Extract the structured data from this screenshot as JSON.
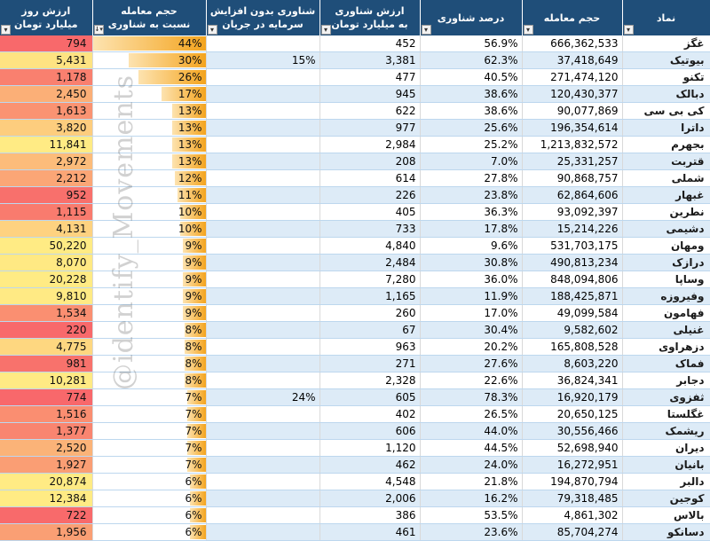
{
  "headers": {
    "namad": "نماد",
    "hajm": "حجم معامله",
    "darsad": "درصد شناوری",
    "arzesh_shenavari_l1": "ارزش شناوری",
    "arzesh_shenavari_l2": "به میلیارد تومان",
    "bedoon_l1": "شناوری بدون افزایش",
    "bedoon_l2": "سرمایه در جریان",
    "nesbat_l1": "حجم معامله",
    "nesbat_l2": "نسبت به شناوری",
    "arzesh_rooz_l1": "ارزش روز",
    "arzesh_rooz_l2": "میلیارد تومان"
  },
  "watermark": "@identify_Movements",
  "rows": [
    {
      "name": "غگز",
      "volume": "666,362,533",
      "float_pct": "56.9%",
      "float_value": "452",
      "no_increase": "",
      "ratio": "44%",
      "ratio_val": 44,
      "market_value": "794",
      "heat": "#f8696b"
    },
    {
      "name": "بیوتیک",
      "volume": "37,418,649",
      "float_pct": "62.3%",
      "float_value": "3,381",
      "no_increase": "15%",
      "ratio": "30%",
      "ratio_val": 30,
      "market_value": "5,431",
      "heat": "#fee382"
    },
    {
      "name": "تکنو",
      "volume": "271,474,120",
      "float_pct": "40.5%",
      "float_value": "477",
      "no_increase": "",
      "ratio": "26%",
      "ratio_val": 26,
      "market_value": "1,178",
      "heat": "#f9806f"
    },
    {
      "name": "دبالک",
      "volume": "120,430,377",
      "float_pct": "38.6%",
      "float_value": "945",
      "no_increase": "",
      "ratio": "17%",
      "ratio_val": 17,
      "market_value": "2,450",
      "heat": "#fbaf77"
    },
    {
      "name": "کی بی سی",
      "volume": "90,077,869",
      "float_pct": "38.6%",
      "float_value": "622",
      "no_increase": "",
      "ratio": "13%",
      "ratio_val": 13,
      "market_value": "1,613",
      "heat": "#fa9372"
    },
    {
      "name": "داترا",
      "volume": "196,354,614",
      "float_pct": "25.6%",
      "float_value": "977",
      "no_increase": "",
      "ratio": "13%",
      "ratio_val": 13,
      "market_value": "3,820",
      "heat": "#fdcd7e"
    },
    {
      "name": "بجهرم",
      "volume": "1,213,832,572",
      "float_pct": "25.2%",
      "float_value": "2,984",
      "no_increase": "",
      "ratio": "13%",
      "ratio_val": 13,
      "market_value": "11,841",
      "heat": "#ffeb84"
    },
    {
      "name": "قتربت",
      "volume": "25,331,257",
      "float_pct": "7.0%",
      "float_value": "208",
      "no_increase": "",
      "ratio": "13%",
      "ratio_val": 13,
      "market_value": "2,972",
      "heat": "#fcbc7a"
    },
    {
      "name": "شملی",
      "volume": "90,868,757",
      "float_pct": "27.8%",
      "float_value": "614",
      "no_increase": "",
      "ratio": "12%",
      "ratio_val": 12,
      "market_value": "2,212",
      "heat": "#fba676"
    },
    {
      "name": "غبهار",
      "volume": "62,864,606",
      "float_pct": "23.8%",
      "float_value": "226",
      "no_increase": "",
      "ratio": "11%",
      "ratio_val": 11,
      "market_value": "952",
      "heat": "#f8706c"
    },
    {
      "name": "نطرین",
      "volume": "93,092,397",
      "float_pct": "36.3%",
      "float_value": "405",
      "no_increase": "",
      "ratio": "10%",
      "ratio_val": 10,
      "market_value": "1,115",
      "heat": "#f97b6e"
    },
    {
      "name": "دشیمی",
      "volume": "15,214,226",
      "float_pct": "17.8%",
      "float_value": "733",
      "no_increase": "",
      "ratio": "10%",
      "ratio_val": 10,
      "market_value": "4,131",
      "heat": "#fed280"
    },
    {
      "name": "ومهان",
      "volume": "531,703,175",
      "float_pct": "9.6%",
      "float_value": "4,840",
      "no_increase": "",
      "ratio": "9%",
      "ratio_val": 9,
      "market_value": "50,220",
      "heat": "#ffeb84"
    },
    {
      "name": "درازک",
      "volume": "490,813,234",
      "float_pct": "30.8%",
      "float_value": "2,484",
      "no_increase": "",
      "ratio": "9%",
      "ratio_val": 9,
      "market_value": "8,070",
      "heat": "#ffe983"
    },
    {
      "name": "وساپا",
      "volume": "848,094,806",
      "float_pct": "36.0%",
      "float_value": "7,280",
      "no_increase": "",
      "ratio": "9%",
      "ratio_val": 9,
      "market_value": "20,228",
      "heat": "#ffeb84"
    },
    {
      "name": "وفیروزه",
      "volume": "188,425,871",
      "float_pct": "11.9%",
      "float_value": "1,165",
      "no_increase": "",
      "ratio": "9%",
      "ratio_val": 9,
      "market_value": "9,810",
      "heat": "#ffea84"
    },
    {
      "name": "فهامون",
      "volume": "49,099,584",
      "float_pct": "17.0%",
      "float_value": "260",
      "no_increase": "",
      "ratio": "9%",
      "ratio_val": 9,
      "market_value": "1,534",
      "heat": "#fa8f71"
    },
    {
      "name": "غنیلی",
      "volume": "9,582,602",
      "float_pct": "30.4%",
      "float_value": "67",
      "no_increase": "",
      "ratio": "8%",
      "ratio_val": 8,
      "market_value": "220",
      "heat": "#f8696b"
    },
    {
      "name": "دزهراوی",
      "volume": "165,808,528",
      "float_pct": "20.2%",
      "float_value": "963",
      "no_increase": "",
      "ratio": "8%",
      "ratio_val": 8,
      "market_value": "4,775",
      "heat": "#fed780"
    },
    {
      "name": "فماک",
      "volume": "8,603,220",
      "float_pct": "27.6%",
      "float_value": "271",
      "no_increase": "",
      "ratio": "8%",
      "ratio_val": 8,
      "market_value": "981",
      "heat": "#f8726c"
    },
    {
      "name": "دجابر",
      "volume": "36,824,341",
      "float_pct": "22.6%",
      "float_value": "2,328",
      "no_increase": "",
      "ratio": "8%",
      "ratio_val": 8,
      "market_value": "10,281",
      "heat": "#ffea84"
    },
    {
      "name": "ثفزوی",
      "volume": "16,920,179",
      "float_pct": "78.3%",
      "float_value": "605",
      "no_increase": "24%",
      "ratio": "7%",
      "ratio_val": 7,
      "market_value": "774",
      "heat": "#f8686b"
    },
    {
      "name": "غگلستا",
      "volume": "20,650,125",
      "float_pct": "26.5%",
      "float_value": "402",
      "no_increase": "",
      "ratio": "7%",
      "ratio_val": 7,
      "market_value": "1,516",
      "heat": "#fa8e71"
    },
    {
      "name": "ریشمک",
      "volume": "30,556,466",
      "float_pct": "44.0%",
      "float_value": "606",
      "no_increase": "",
      "ratio": "7%",
      "ratio_val": 7,
      "market_value": "1,377",
      "heat": "#f98570"
    },
    {
      "name": "دیران",
      "volume": "52,698,940",
      "float_pct": "44.5%",
      "float_value": "1,120",
      "no_increase": "",
      "ratio": "7%",
      "ratio_val": 7,
      "market_value": "2,520",
      "heat": "#fbb378"
    },
    {
      "name": "بانیان",
      "volume": "16,272,951",
      "float_pct": "24.0%",
      "float_value": "462",
      "no_increase": "",
      "ratio": "7%",
      "ratio_val": 7,
      "market_value": "1,927",
      "heat": "#fa9e74"
    },
    {
      "name": "دالبر",
      "volume": "194,870,794",
      "float_pct": "21.8%",
      "float_value": "4,548",
      "no_increase": "",
      "ratio": "6%",
      "ratio_val": 6,
      "market_value": "20,874",
      "heat": "#ffeb84"
    },
    {
      "name": "کوجین",
      "volume": "79,318,485",
      "float_pct": "16.2%",
      "float_value": "2,006",
      "no_increase": "",
      "ratio": "6%",
      "ratio_val": 6,
      "market_value": "12,384",
      "heat": "#ffeb84"
    },
    {
      "name": "بالاس",
      "volume": "4,861,302",
      "float_pct": "53.5%",
      "float_value": "386",
      "no_increase": "",
      "ratio": "6%",
      "ratio_val": 6,
      "market_value": "722",
      "heat": "#f86a6b"
    },
    {
      "name": "دسانکو",
      "volume": "85,704,274",
      "float_pct": "23.6%",
      "float_value": "461",
      "no_increase": "",
      "ratio": "6%",
      "ratio_val": 6,
      "market_value": "1,956",
      "heat": "#fa9f74"
    }
  ]
}
